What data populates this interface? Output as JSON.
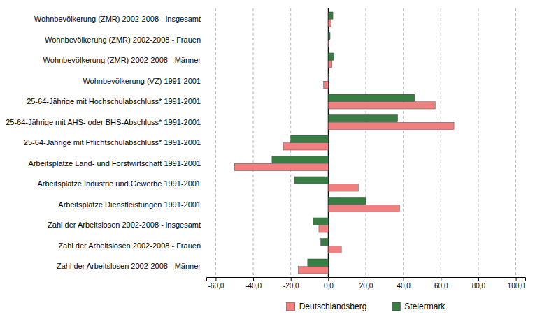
{
  "chart_data": {
    "type": "bar",
    "orientation": "horizontal",
    "categories": [
      "Wohnbevölkerung (ZMR) 2002-2008 - insgesamt",
      "Wohnbevölkerung (ZMR) 2002-2008 - Frauen",
      "Wohnbevölkerung (ZMR) 2002-2008 - Männer",
      "Wohnbevölkerung (VZ) 1991-2001",
      "25-64-Jährige mit Hochschulabschluss* 1991-2001",
      "25-64-Jährige mit AHS- oder BHS-Abschluss* 1991-2001",
      "25-64-Jährige mit Pflichtschulabschluss* 1991-2001",
      "Arbeitsplätze Land- und Forstwirtschaft 1991-2001",
      "Arbeitsplätze Industrie und Gewerbe 1991-2001",
      "Arbeitsplätze Dienstleistungen 1991-2001",
      "Zahl der Arbeitslosen 2002-2008 - insgesamt",
      "Zahl der Arbeitslosen 2002-2008 - Frauen",
      "Zahl der Arbeitslosen 2002-2008 - Männer"
    ],
    "series": [
      {
        "name": "Deutschlandsberg",
        "color": "#f08080",
        "values": [
          1.5,
          0.5,
          2.0,
          -2.5,
          57.0,
          67.0,
          -24.0,
          -50.0,
          16.0,
          38.0,
          -5.0,
          7.0,
          -16.0
        ]
      },
      {
        "name": "Steiermark",
        "color": "#3a7d44",
        "values": [
          2.5,
          1.0,
          3.0,
          0.5,
          46.0,
          37.0,
          -20.0,
          -30.0,
          -18.0,
          20.0,
          -8.0,
          -4.0,
          -11.0
        ]
      }
    ],
    "xlim": [
      -65,
      105
    ],
    "xticks": [
      {
        "value": -60,
        "label": "-60,0"
      },
      {
        "value": -40,
        "label": "-40,0"
      },
      {
        "value": -20,
        "label": "-20,0"
      },
      {
        "value": 0,
        "label": "0,0"
      },
      {
        "value": 20,
        "label": "20,0"
      },
      {
        "value": 40,
        "label": "40,0"
      },
      {
        "value": 60,
        "label": "60,0"
      },
      {
        "value": 80,
        "label": "80,0"
      },
      {
        "value": 100,
        "label": "100,0"
      }
    ],
    "grid": true,
    "legend": "bottom"
  }
}
